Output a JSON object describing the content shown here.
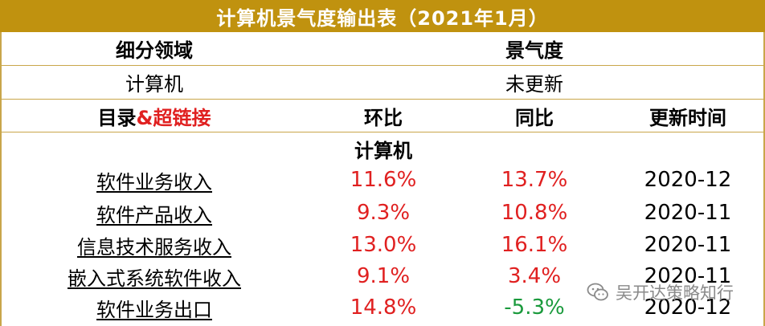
{
  "title": "计算机景气度输出表（2021年1月）",
  "section_header": {
    "label_col": "细分领域",
    "value_col": "景气度"
  },
  "section_row": {
    "label": "计算机",
    "value": "未更新"
  },
  "table_header": {
    "col1_prefix": "目录",
    "col1_suffix": "&超链接",
    "col2": "环比",
    "col3": "同比",
    "col4": "更新时间"
  },
  "group_label": "计算机",
  "rows": [
    {
      "name": "软件业务收入",
      "mom": "11.6%",
      "yoy": "13.7%",
      "date": "2020-12"
    },
    {
      "name": "软件产品收入",
      "mom": "9.3%",
      "yoy": "10.8%",
      "date": "2020-11"
    },
    {
      "name": "信息技术服务收入",
      "mom": "13.0%",
      "yoy": "16.1%",
      "date": "2020-11"
    },
    {
      "name": "嵌入式系统软件收入",
      "mom": "9.1%",
      "yoy": "3.4%",
      "date": "2020-11"
    },
    {
      "name": "软件业务出口",
      "mom": "14.8%",
      "yoy": "-5.3%",
      "date": "2020-12"
    }
  ],
  "colors": {
    "header_band": "#c0920f",
    "positive": "#e02020",
    "negative": "#1a9a3c",
    "link_accent": "#e02020"
  },
  "watermark": {
    "icon": "wechat-icon",
    "text": "吴开达策略知行"
  }
}
